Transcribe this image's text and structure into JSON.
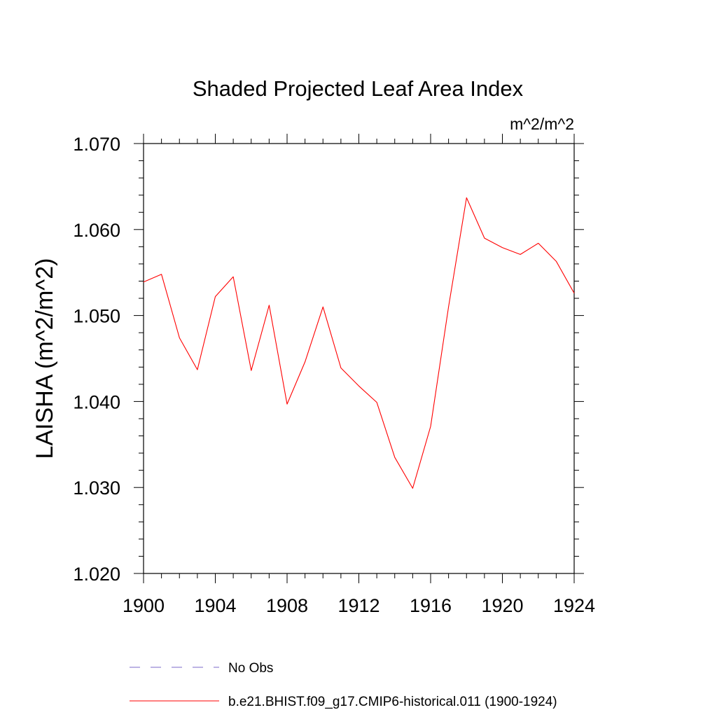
{
  "chart_data": {
    "type": "line",
    "title": "Shaded Projected Leaf Area Index",
    "units_label": "m^2/m^2",
    "ylabel": "LAISHA  (m^2/m^2)",
    "xlabel": "",
    "xlim": [
      1900,
      1924
    ],
    "ylim": [
      1.02,
      1.07
    ],
    "x_ticks": [
      1900,
      1904,
      1908,
      1912,
      1916,
      1920,
      1924
    ],
    "x_tick_labels": [
      "1900",
      "1904",
      "1908",
      "1912",
      "1916",
      "1920",
      "1924"
    ],
    "y_ticks": [
      1.02,
      1.03,
      1.04,
      1.05,
      1.06,
      1.07
    ],
    "y_tick_labels": [
      "1.020",
      "1.030",
      "1.040",
      "1.050",
      "1.060",
      "1.070"
    ],
    "grid": false,
    "legend_position": "bottom",
    "series": [
      {
        "name": "b.e21.BHIST.f09_g17.CMIP6-historical.011 (1900-1924)",
        "color": "#ff0000",
        "dash": "solid",
        "x": [
          1900,
          1901,
          1902,
          1903,
          1904,
          1905,
          1906,
          1907,
          1908,
          1909,
          1910,
          1911,
          1912,
          1913,
          1914,
          1915,
          1916,
          1917,
          1918,
          1919,
          1920,
          1921,
          1922,
          1923,
          1924
        ],
        "y": [
          1.0539,
          1.0548,
          1.0474,
          1.0437,
          1.0522,
          1.0545,
          1.0436,
          1.0512,
          1.0397,
          1.0446,
          1.051,
          1.0439,
          1.0418,
          1.0399,
          1.0335,
          1.0299,
          1.0371,
          1.051,
          1.0637,
          1.059,
          1.0579,
          1.0571,
          1.0584,
          1.0563,
          1.0526
        ]
      }
    ],
    "legend": [
      {
        "label": "No Obs",
        "color": "#7b68c8",
        "dash": "dashed"
      },
      {
        "label": "b.e21.BHIST.f09_g17.CMIP6-historical.011 (1900-1924)",
        "color": "#ff0000",
        "dash": "solid"
      }
    ]
  }
}
